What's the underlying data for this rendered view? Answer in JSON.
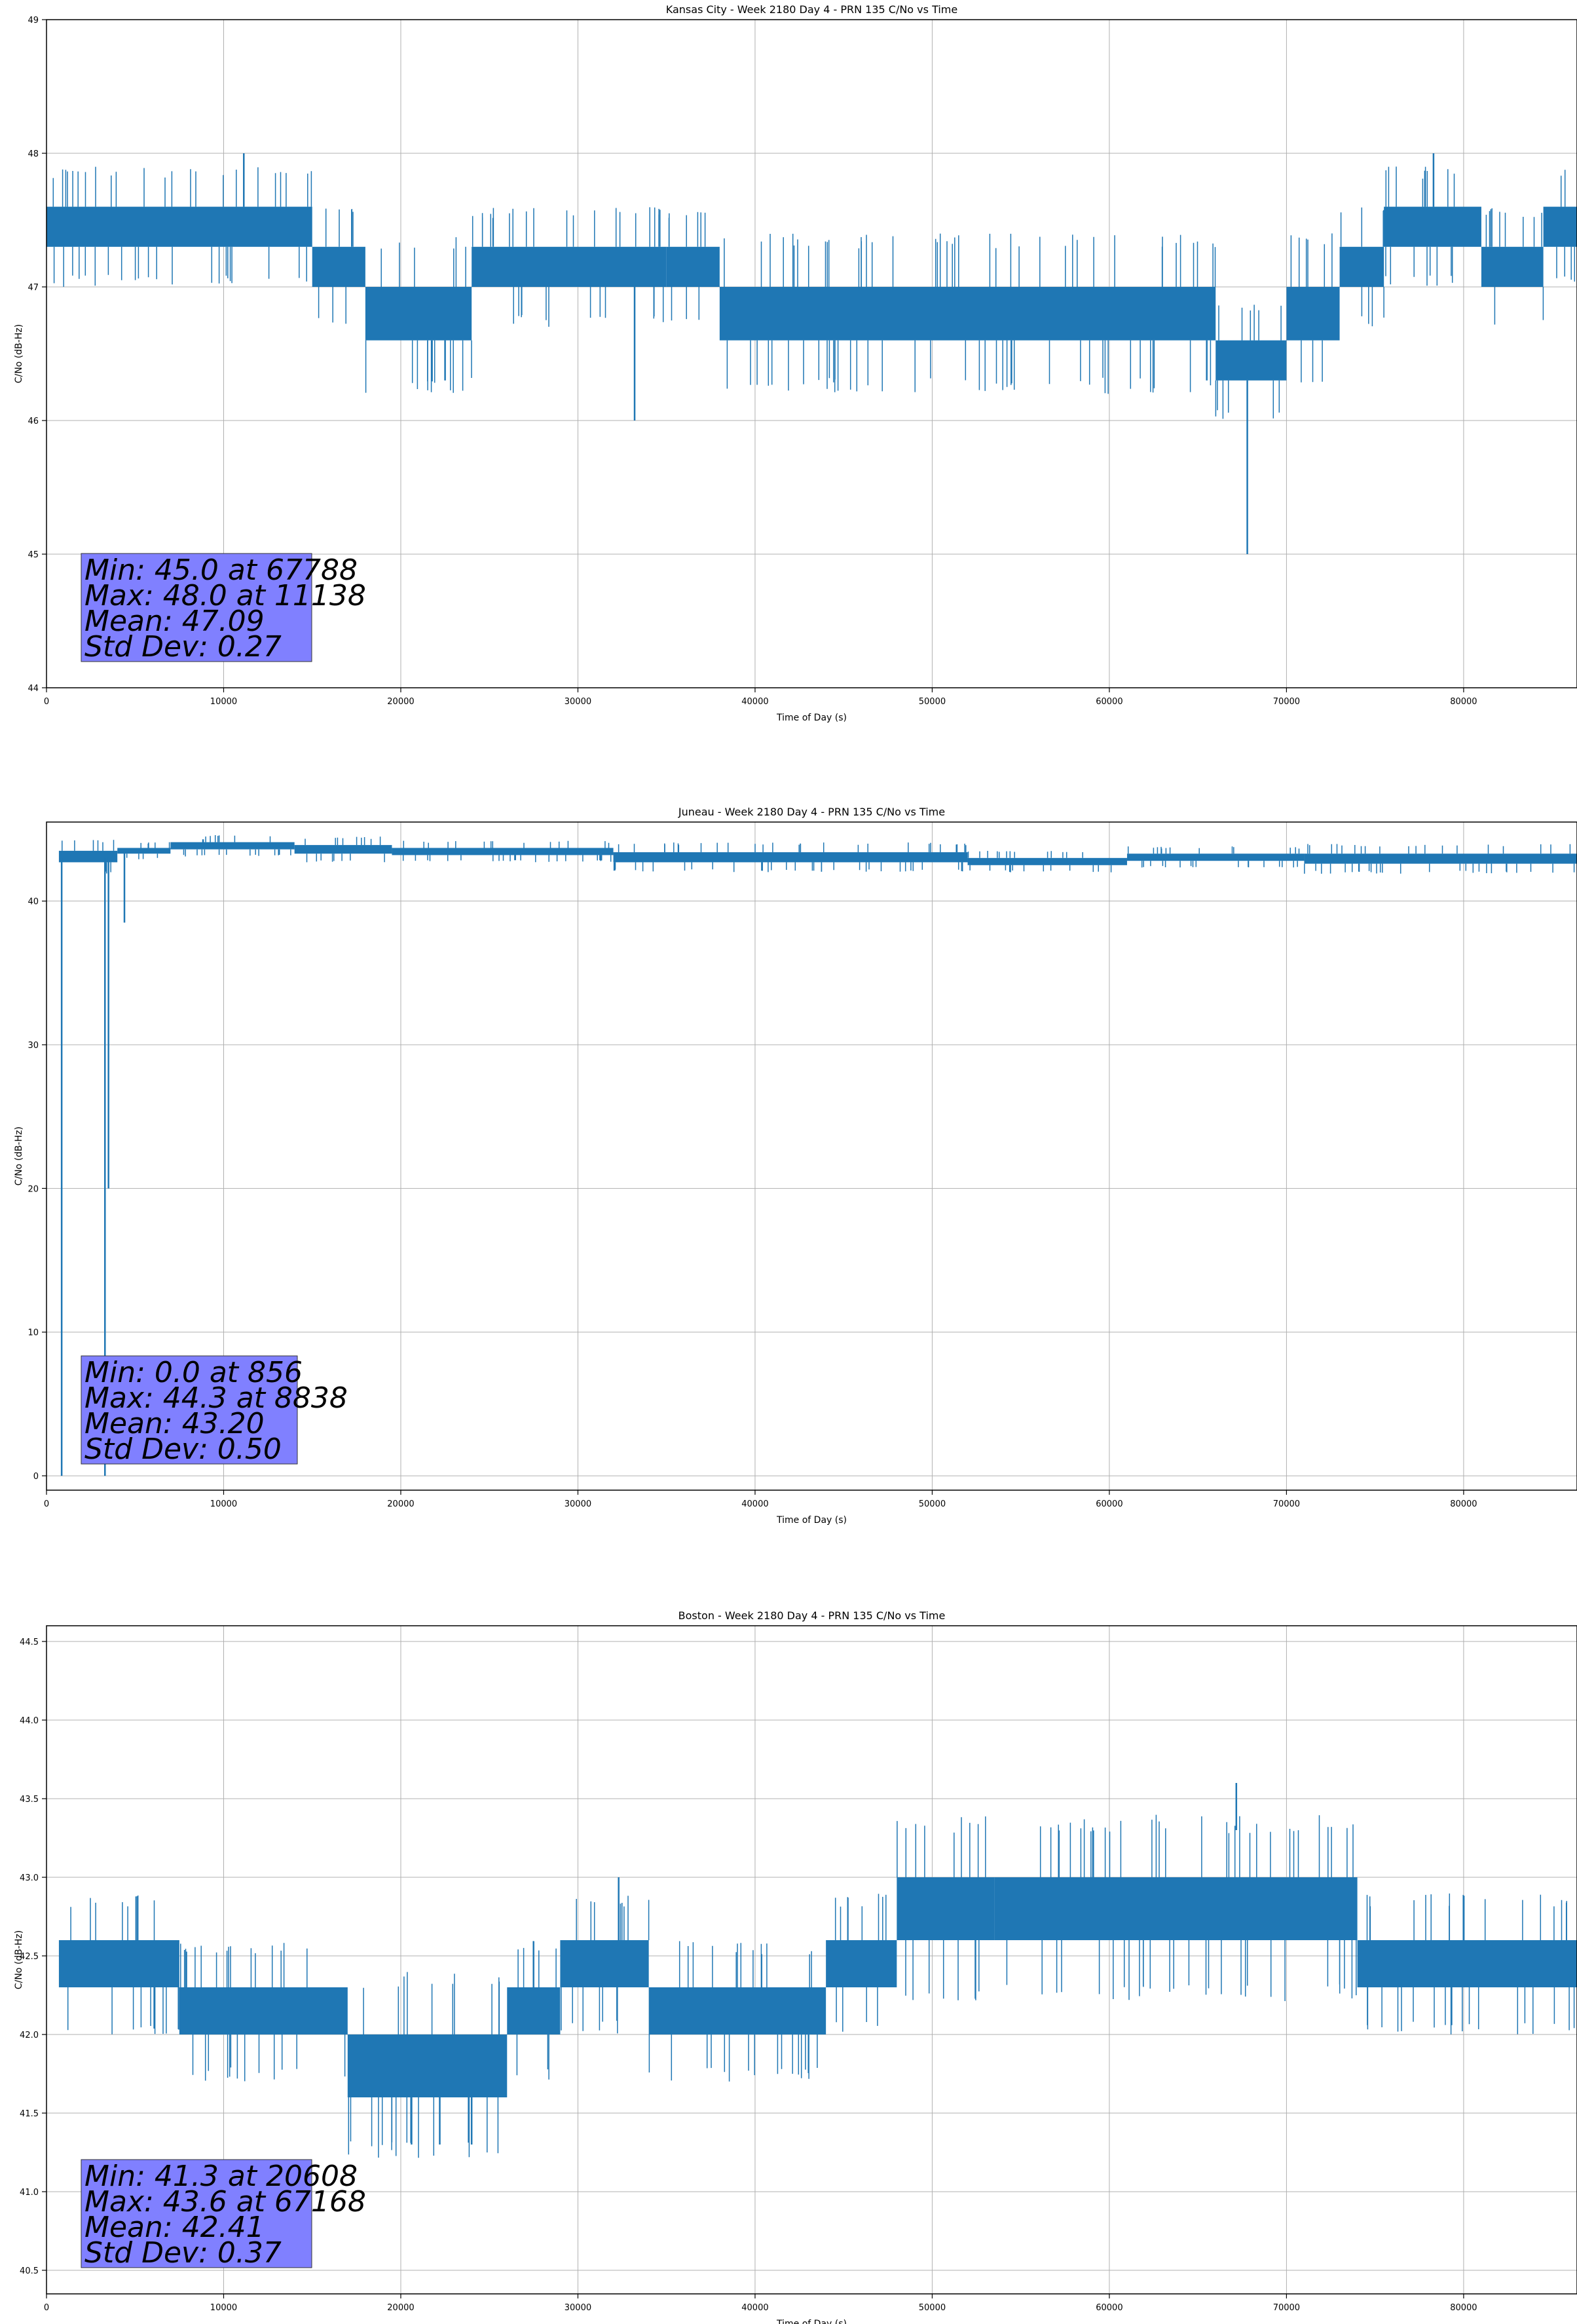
{
  "chart_data": [
    {
      "type": "line",
      "title": "Kansas City - Week 2180 Day 4 - PRN 135 C/No vs Time",
      "xlabel": "Time of Day (s)",
      "ylabel": "C/No (dB-Hz)",
      "xlim": [
        0,
        86400
      ],
      "ylim": [
        44,
        49
      ],
      "xticks": [
        0,
        10000,
        20000,
        30000,
        40000,
        50000,
        60000,
        70000,
        80000
      ],
      "yticks": [
        44,
        45,
        46,
        47,
        48,
        49
      ],
      "grid": true,
      "line_color": "#1f77b4",
      "segments": [
        {
          "x0": 0,
          "x1": 15000,
          "lo": 47.3,
          "hi": 47.6
        },
        {
          "x0": 15000,
          "x1": 18000,
          "lo": 47.0,
          "hi": 47.3
        },
        {
          "x0": 18000,
          "x1": 24000,
          "lo": 46.6,
          "hi": 47.0
        },
        {
          "x0": 24000,
          "x1": 35000,
          "lo": 47.0,
          "hi": 47.3
        },
        {
          "x0": 35000,
          "x1": 38000,
          "lo": 47.0,
          "hi": 47.3
        },
        {
          "x0": 38000,
          "x1": 66000,
          "lo": 46.6,
          "hi": 47.0
        },
        {
          "x0": 66000,
          "x1": 70000,
          "lo": 46.3,
          "hi": 46.6
        },
        {
          "x0": 70000,
          "x1": 73000,
          "lo": 46.6,
          "hi": 47.0
        },
        {
          "x0": 73000,
          "x1": 75500,
          "lo": 47.0,
          "hi": 47.3
        },
        {
          "x0": 75500,
          "x1": 81000,
          "lo": 47.3,
          "hi": 47.6
        },
        {
          "x0": 81000,
          "x1": 84500,
          "lo": 47.0,
          "hi": 47.3
        },
        {
          "x0": 84500,
          "x1": 86400,
          "lo": 47.3,
          "hi": 47.6
        }
      ],
      "spikes": [
        {
          "x": 11138,
          "from": 47.6,
          "to": 48.0
        },
        {
          "x": 78300,
          "from": 47.6,
          "to": 48.0
        },
        {
          "x": 33200,
          "from": 47.0,
          "to": 46.0
        },
        {
          "x": 67788,
          "from": 46.3,
          "to": 45.0
        },
        {
          "x": 22500,
          "from": 46.6,
          "to": 46.3
        },
        {
          "x": 65500,
          "from": 46.6,
          "to": 46.3
        }
      ],
      "stats": {
        "min": "Min: 45.0 at 67788",
        "max": "Max: 48.0 at 11138",
        "mean": "Mean: 47.09",
        "std": "Std Dev: 0.27"
      },
      "stats_box_color": "#8080ff"
    },
    {
      "type": "line",
      "title": "Juneau - Week 2180 Day 4 - PRN 135 C/No vs Time",
      "xlabel": "Time of Day (s)",
      "ylabel": "C/No (dB-Hz)",
      "xlim": [
        0,
        86400
      ],
      "ylim": [
        -1,
        45.5
      ],
      "xticks": [
        0,
        10000,
        20000,
        30000,
        40000,
        50000,
        60000,
        70000,
        80000
      ],
      "yticks": [
        0,
        10,
        20,
        30,
        40
      ],
      "grid": true,
      "line_color": "#1f77b4",
      "segments": [
        {
          "x0": 700,
          "x1": 4000,
          "lo": 42.7,
          "hi": 43.5
        },
        {
          "x0": 4000,
          "x1": 7000,
          "lo": 43.3,
          "hi": 43.7
        },
        {
          "x0": 7000,
          "x1": 14000,
          "lo": 43.6,
          "hi": 44.1
        },
        {
          "x0": 14000,
          "x1": 19500,
          "lo": 43.3,
          "hi": 43.9
        },
        {
          "x0": 19500,
          "x1": 32000,
          "lo": 43.2,
          "hi": 43.7
        },
        {
          "x0": 32000,
          "x1": 52000,
          "lo": 42.7,
          "hi": 43.4
        },
        {
          "x0": 52000,
          "x1": 61000,
          "lo": 42.5,
          "hi": 43.0
        },
        {
          "x0": 61000,
          "x1": 71000,
          "lo": 42.8,
          "hi": 43.3
        },
        {
          "x0": 71000,
          "x1": 86400,
          "lo": 42.6,
          "hi": 43.3
        }
      ],
      "spikes": [
        {
          "x": 856,
          "from": 43.0,
          "to": 0.0
        },
        {
          "x": 3300,
          "from": 43.0,
          "to": 0.0
        },
        {
          "x": 3500,
          "from": 43.0,
          "to": 20.0
        },
        {
          "x": 4400,
          "from": 43.5,
          "to": 38.5
        },
        {
          "x": 8838,
          "from": 44.0,
          "to": 44.3
        }
      ],
      "stats": {
        "min": "Min: 0.0 at 856",
        "max": "Max: 44.3 at 8838",
        "mean": "Mean: 43.20",
        "std": "Std Dev: 0.50"
      },
      "stats_box_color": "#8080ff"
    },
    {
      "type": "line",
      "title": "Boston - Week 2180 Day 4 - PRN 135 C/No vs Time",
      "xlabel": "Time of Day (s)",
      "ylabel": "C/No (dB-Hz)",
      "xlim": [
        0,
        86400
      ],
      "ylim": [
        40.35,
        44.6
      ],
      "xticks": [
        0,
        10000,
        20000,
        30000,
        40000,
        50000,
        60000,
        70000,
        80000
      ],
      "yticks": [
        40.5,
        41.0,
        41.5,
        42.0,
        42.5,
        43.0,
        43.5,
        44.0,
        44.5
      ],
      "grid": true,
      "line_color": "#1f77b4",
      "segments": [
        {
          "x0": 700,
          "x1": 7500,
          "lo": 42.3,
          "hi": 42.6
        },
        {
          "x0": 7500,
          "x1": 17000,
          "lo": 42.0,
          "hi": 42.3
        },
        {
          "x0": 17000,
          "x1": 26000,
          "lo": 41.6,
          "hi": 42.0
        },
        {
          "x0": 26000,
          "x1": 29000,
          "lo": 42.0,
          "hi": 42.3
        },
        {
          "x0": 29000,
          "x1": 34000,
          "lo": 42.3,
          "hi": 42.6
        },
        {
          "x0": 34000,
          "x1": 44000,
          "lo": 42.0,
          "hi": 42.3
        },
        {
          "x0": 44000,
          "x1": 48000,
          "lo": 42.3,
          "hi": 42.6
        },
        {
          "x0": 48000,
          "x1": 53500,
          "lo": 42.6,
          "hi": 43.0
        },
        {
          "x0": 53500,
          "x1": 74000,
          "lo": 42.6,
          "hi": 43.0
        },
        {
          "x0": 74000,
          "x1": 86400,
          "lo": 42.3,
          "hi": 42.6
        }
      ],
      "spikes": [
        {
          "x": 32300,
          "from": 42.6,
          "to": 43.0
        },
        {
          "x": 67168,
          "from": 43.3,
          "to": 43.6
        },
        {
          "x": 20608,
          "from": 41.6,
          "to": 41.3
        },
        {
          "x": 22200,
          "from": 41.6,
          "to": 41.3
        },
        {
          "x": 24000,
          "from": 41.6,
          "to": 41.3
        }
      ],
      "stats": {
        "min": "Min: 41.3 at 20608",
        "max": "Max: 43.6 at 67168",
        "mean": "Mean: 42.41",
        "std": "Std Dev: 0.37"
      },
      "stats_box_color": "#8080ff"
    }
  ]
}
